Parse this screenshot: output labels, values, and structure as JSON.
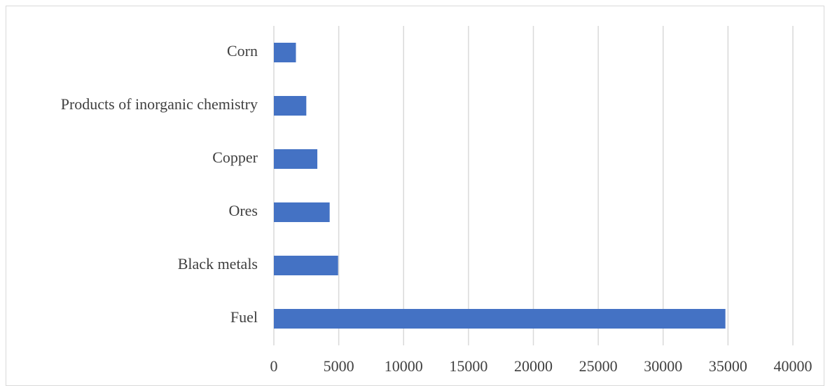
{
  "chart_data": {
    "type": "bar",
    "orientation": "horizontal",
    "categories": [
      "Fuel",
      "Black metals",
      "Ores",
      "Copper",
      "Products of inorganic chemistry",
      "Corn"
    ],
    "values": [
      34800,
      4950,
      4300,
      3350,
      2500,
      1700
    ],
    "color": "#4472c4",
    "xlim": [
      0,
      40000
    ],
    "xticks": [
      0,
      5000,
      10000,
      15000,
      20000,
      25000,
      30000,
      35000,
      40000
    ],
    "grid": true
  }
}
